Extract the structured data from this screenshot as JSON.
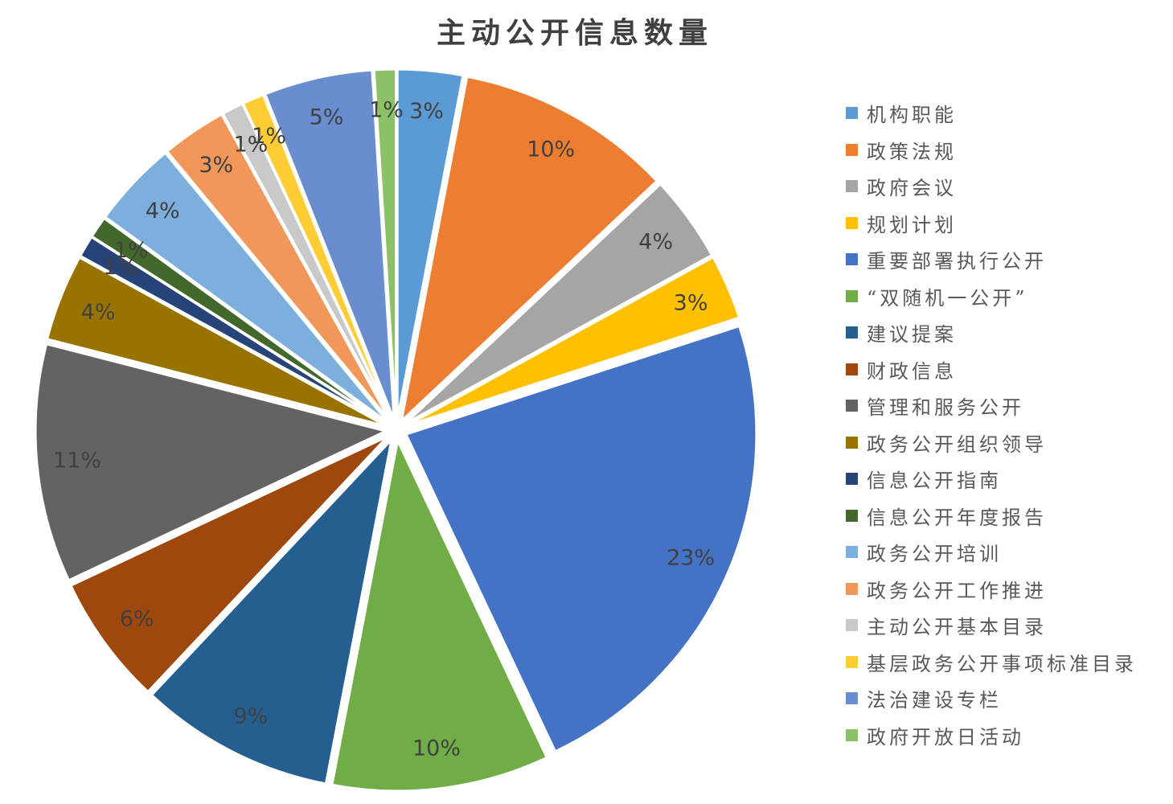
{
  "chart_data": {
    "type": "pie",
    "title": "主动公开信息数量",
    "label_format": "percent",
    "legend_position": "right",
    "start_angle_deg": 0,
    "direction": "clockwise",
    "exploded": true,
    "slices": [
      {
        "label": "机构职能",
        "pct": 3,
        "color": "#5B9BD5"
      },
      {
        "label": "政策法规",
        "pct": 10,
        "color": "#ED7D31"
      },
      {
        "label": "政府会议",
        "pct": 4,
        "color": "#A5A5A5"
      },
      {
        "label": "规划计划",
        "pct": 3,
        "color": "#FFC000"
      },
      {
        "label": "重要部署执行公开",
        "pct": 23,
        "color": "#4472C4"
      },
      {
        "label": "“双随机一公开”",
        "pct": 10,
        "color": "#70AD47"
      },
      {
        "label": "建议提案",
        "pct": 9,
        "color": "#255E91"
      },
      {
        "label": "财政信息",
        "pct": 6,
        "color": "#9E480E"
      },
      {
        "label": "管理和服务公开",
        "pct": 11,
        "color": "#636363"
      },
      {
        "label": "政务公开组织领导",
        "pct": 4,
        "color": "#997300"
      },
      {
        "label": "信息公开指南",
        "pct": 1,
        "color": "#264478"
      },
      {
        "label": "信息公开年度报告",
        "pct": 1,
        "color": "#43682B"
      },
      {
        "label": "政务公开培训",
        "pct": 4,
        "color": "#7CAFDD"
      },
      {
        "label": "政务公开工作推进",
        "pct": 3,
        "color": "#F1975A"
      },
      {
        "label": "主动公开基本目录",
        "pct": 1,
        "color": "#C9C9C9"
      },
      {
        "label": "基层政务公开事项标准目录",
        "pct": 1,
        "color": "#FFCD33"
      },
      {
        "label": "法治建设专栏",
        "pct": 5,
        "color": "#698ED0"
      },
      {
        "label": "政府开放日活动",
        "pct": 1,
        "color": "#8CC168"
      }
    ]
  },
  "styles": {
    "background": "#FFFFFF",
    "title_color": "#404040",
    "data_label_color": "#404040",
    "legend_text_color": "#595959",
    "slice_border_color": "#FFFFFF"
  }
}
